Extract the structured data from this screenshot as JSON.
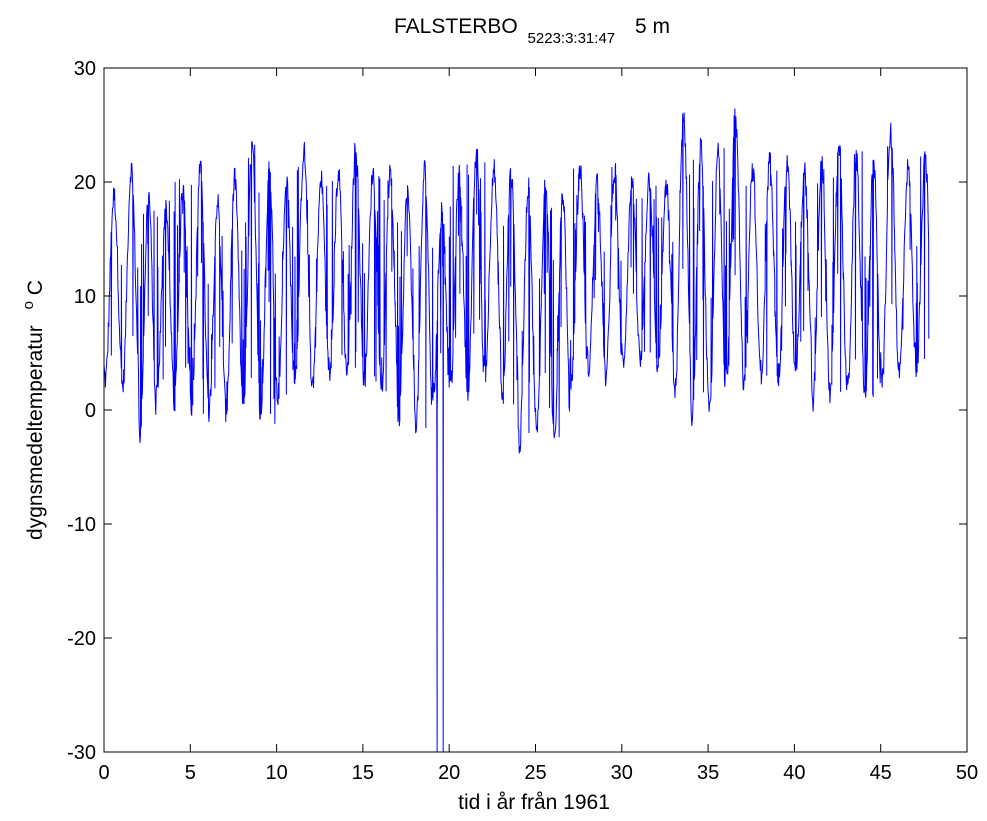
{
  "chart_data": {
    "type": "line",
    "title": {
      "station": "FALSTERBO",
      "station_id": "5223:3:31:47",
      "depth": "5 m"
    },
    "xlabel": "tid i år från 1961",
    "ylabel": {
      "main": "dygnsmedeltemperatur",
      "unit_super": "o",
      "unit": "C"
    },
    "xlim": [
      0,
      50
    ],
    "ylim": [
      -30,
      30
    ],
    "x_ticks": [
      0,
      5,
      10,
      15,
      20,
      25,
      30,
      35,
      40,
      45,
      50
    ],
    "y_ticks": [
      -30,
      -20,
      -10,
      0,
      10,
      20,
      30
    ],
    "grid": false,
    "box": true,
    "line_color": "#0000ff",
    "series": [
      {
        "values_description_only": "",
        "x_start": 0,
        "x_end": 47.8,
        "mean": 10.5,
        "amplitude": 8.5,
        "period_years": 1,
        "phase_peak_fraction": 0.58,
        "noise": 2.2,
        "yearly_peaks": [
          19.5,
          22,
          19.8,
          18.5,
          20.4,
          22,
          19,
          21.2,
          24,
          22,
          20.5,
          23.6,
          21,
          21.5,
          23.8,
          21.6,
          21.5,
          20,
          22,
          18.5,
          21.5,
          23.5,
          22,
          21.5,
          20.5,
          21,
          19.8,
          22,
          20.8,
          22,
          20.5,
          21,
          20.3,
          26.8,
          24,
          23.5,
          26.5,
          22,
          23,
          22.5,
          21.8,
          22.4,
          24.5,
          23,
          22.5,
          25.2,
          22,
          22.8
        ],
        "yearly_troughs": [
          2,
          1.2,
          -3,
          1.2,
          0,
          -0.5,
          -0.8,
          -1,
          -0.5,
          -1.5,
          0.5,
          2,
          1.5,
          2.5,
          2.5,
          1.8,
          1,
          -1.5,
          -2,
          0.5,
          1,
          1,
          2.5,
          0,
          -4,
          -2.5,
          -3.5,
          1.5,
          3,
          2,
          3.5,
          3.5,
          2.5,
          0.5,
          -1.5,
          -1.5,
          2.5,
          1.5,
          2.5,
          2,
          3,
          0,
          0.5,
          1,
          0,
          2,
          2.5,
          3
        ],
        "outliers": [
          {
            "x": 19.3,
            "y": -30
          },
          {
            "x": 19.5,
            "y": 8.8
          },
          {
            "x": 19.65,
            "y": -30
          }
        ]
      }
    ]
  }
}
